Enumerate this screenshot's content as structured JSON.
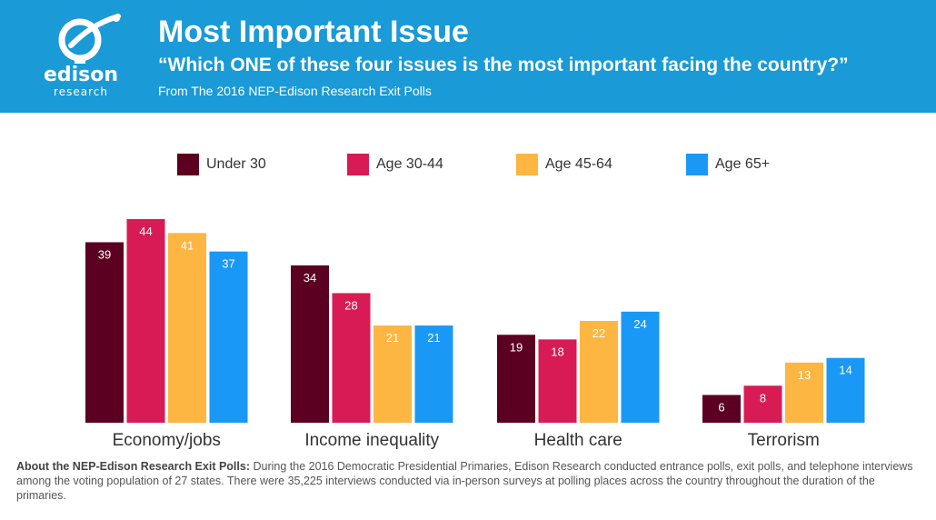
{
  "header": {
    "logo_text": "edison",
    "logo_subtext": "research",
    "title": "Most Important Issue",
    "subtitle": "“Which ONE of these four issues is the most important facing the country?”",
    "source": "From The 2016 NEP-Edison Research Exit Polls",
    "background_color": "#1a9ad6"
  },
  "chart_data": {
    "type": "bar",
    "categories": [
      "Economy/jobs",
      "Income inequality",
      "Health care",
      "Terrorism"
    ],
    "series": [
      {
        "name": "Under 30",
        "color": "#5b0020",
        "values": [
          39,
          34,
          19,
          6
        ]
      },
      {
        "name": "Age 30-44",
        "color": "#d81b55",
        "values": [
          44,
          28,
          18,
          8
        ]
      },
      {
        "name": "Age 45-64",
        "color": "#fdb641",
        "values": [
          41,
          21,
          22,
          13
        ]
      },
      {
        "name": "Age 65+",
        "color": "#1a98f5",
        "values": [
          37,
          21,
          24,
          14
        ]
      }
    ],
    "ylim": [
      0,
      44
    ],
    "grid": false,
    "legend_position": "top"
  },
  "footer": {
    "heading": "About the NEP-Edison Research Exit Polls:",
    "text": " During the 2016 Democratic Presidential Primaries, Edison Research conducted entrance polls, exit polls, and telephone interviews among the voting population of 27 states. There were 35,225 interviews conducted via in-person surveys at polling places across the country throughout the duration of the primaries."
  }
}
